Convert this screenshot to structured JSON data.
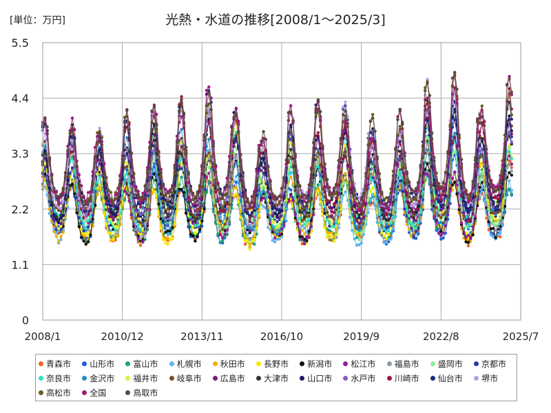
{
  "unit_label": "[単位：万円]",
  "chart_data": {
    "type": "line",
    "title": "光熱・水道の推移[2008/1～2025/3]",
    "xlabel": "",
    "ylabel": "",
    "ylim": [
      0,
      5.5
    ],
    "yticks": [
      0,
      1.1,
      2.2,
      3.3,
      4.4,
      5.5
    ],
    "ytick_labels": [
      "0",
      "1.1",
      "2.2",
      "3.3",
      "4.4",
      "5.5"
    ],
    "xlim": [
      "2008/1",
      "2025/7"
    ],
    "xticks": [
      "2008/1",
      "2010/12",
      "2013/11",
      "2016/10",
      "2019/9",
      "2022/8",
      "2025/7"
    ],
    "grid": true,
    "legend_position": "bottom",
    "x_start": "2008/1",
    "x_end": "2025/3",
    "frequency": "monthly",
    "series_pattern": "Each series shows a strong annual cycle: winter peaks (Jan–Mar) and summer/autumn troughs.",
    "annual_peak_range": {
      "years": [
        2008,
        2009,
        2010,
        2011,
        2012,
        2013,
        2014,
        2015,
        2016,
        2017,
        2018,
        2019,
        2020,
        2021,
        2022,
        2023,
        2024,
        2025
      ],
      "min_peak": [
        2.7,
        2.7,
        2.6,
        2.5,
        2.6,
        2.6,
        2.7,
        2.5,
        2.2,
        2.4,
        2.5,
        2.5,
        2.4,
        2.5,
        2.8,
        2.7,
        2.5,
        2.6
      ],
      "max_peak": [
        4.0,
        3.95,
        3.8,
        4.1,
        4.3,
        4.4,
        4.65,
        4.35,
        3.7,
        4.2,
        4.35,
        4.4,
        4.1,
        4.1,
        4.7,
        5.1,
        4.2,
        4.8
      ],
      "min_trough": [
        1.6,
        1.55,
        1.6,
        1.55,
        1.55,
        1.6,
        1.55,
        1.45,
        1.5,
        1.55,
        1.6,
        1.5,
        1.55,
        1.55,
        1.65,
        1.55,
        1.6,
        1.65
      ],
      "max_trough": [
        2.4,
        2.4,
        2.4,
        2.4,
        2.5,
        2.4,
        2.5,
        2.4,
        2.4,
        2.4,
        2.5,
        2.4,
        2.4,
        2.5,
        2.6,
        2.5,
        2.6,
        2.5
      ]
    },
    "series": [
      {
        "name": "青森市",
        "color": "#f26522"
      },
      {
        "name": "山形市",
        "color": "#1a5fd6"
      },
      {
        "name": "富山市",
        "color": "#1aa36f"
      },
      {
        "name": "札幌市",
        "color": "#5ab4f0"
      },
      {
        "name": "秋田市",
        "color": "#f0b000"
      },
      {
        "name": "長野市",
        "color": "#f5ea00"
      },
      {
        "name": "新潟市",
        "color": "#111111"
      },
      {
        "name": "松江市",
        "color": "#9a1a9a"
      },
      {
        "name": "福島市",
        "color": "#8a98a8"
      },
      {
        "name": "盛岡市",
        "color": "#8ef08e"
      },
      {
        "name": "京都市",
        "color": "#2a3aa8"
      },
      {
        "name": "奈良市",
        "color": "#2ee0c0"
      },
      {
        "name": "金沢市",
        "color": "#2a88c0"
      },
      {
        "name": "福井市",
        "color": "#e0f040"
      },
      {
        "name": "岐阜市",
        "color": "#7a4a2a"
      },
      {
        "name": "広島市",
        "color": "#7a1a7a"
      },
      {
        "name": "大津市",
        "color": "#2a3a2a"
      },
      {
        "name": "山口市",
        "color": "#1a1a6a"
      },
      {
        "name": "水戸市",
        "color": "#8a5ac0"
      },
      {
        "name": "川崎市",
        "color": "#9a1a3a"
      },
      {
        "name": "仙台市",
        "color": "#1a2a7a"
      },
      {
        "name": "堺市",
        "color": "#b8a0e8"
      },
      {
        "name": "高松市",
        "color": "#6a5a20"
      },
      {
        "name": "全国",
        "color": "#a01a7a"
      },
      {
        "name": "鳥取市",
        "color": "#5a4a3a"
      }
    ]
  }
}
